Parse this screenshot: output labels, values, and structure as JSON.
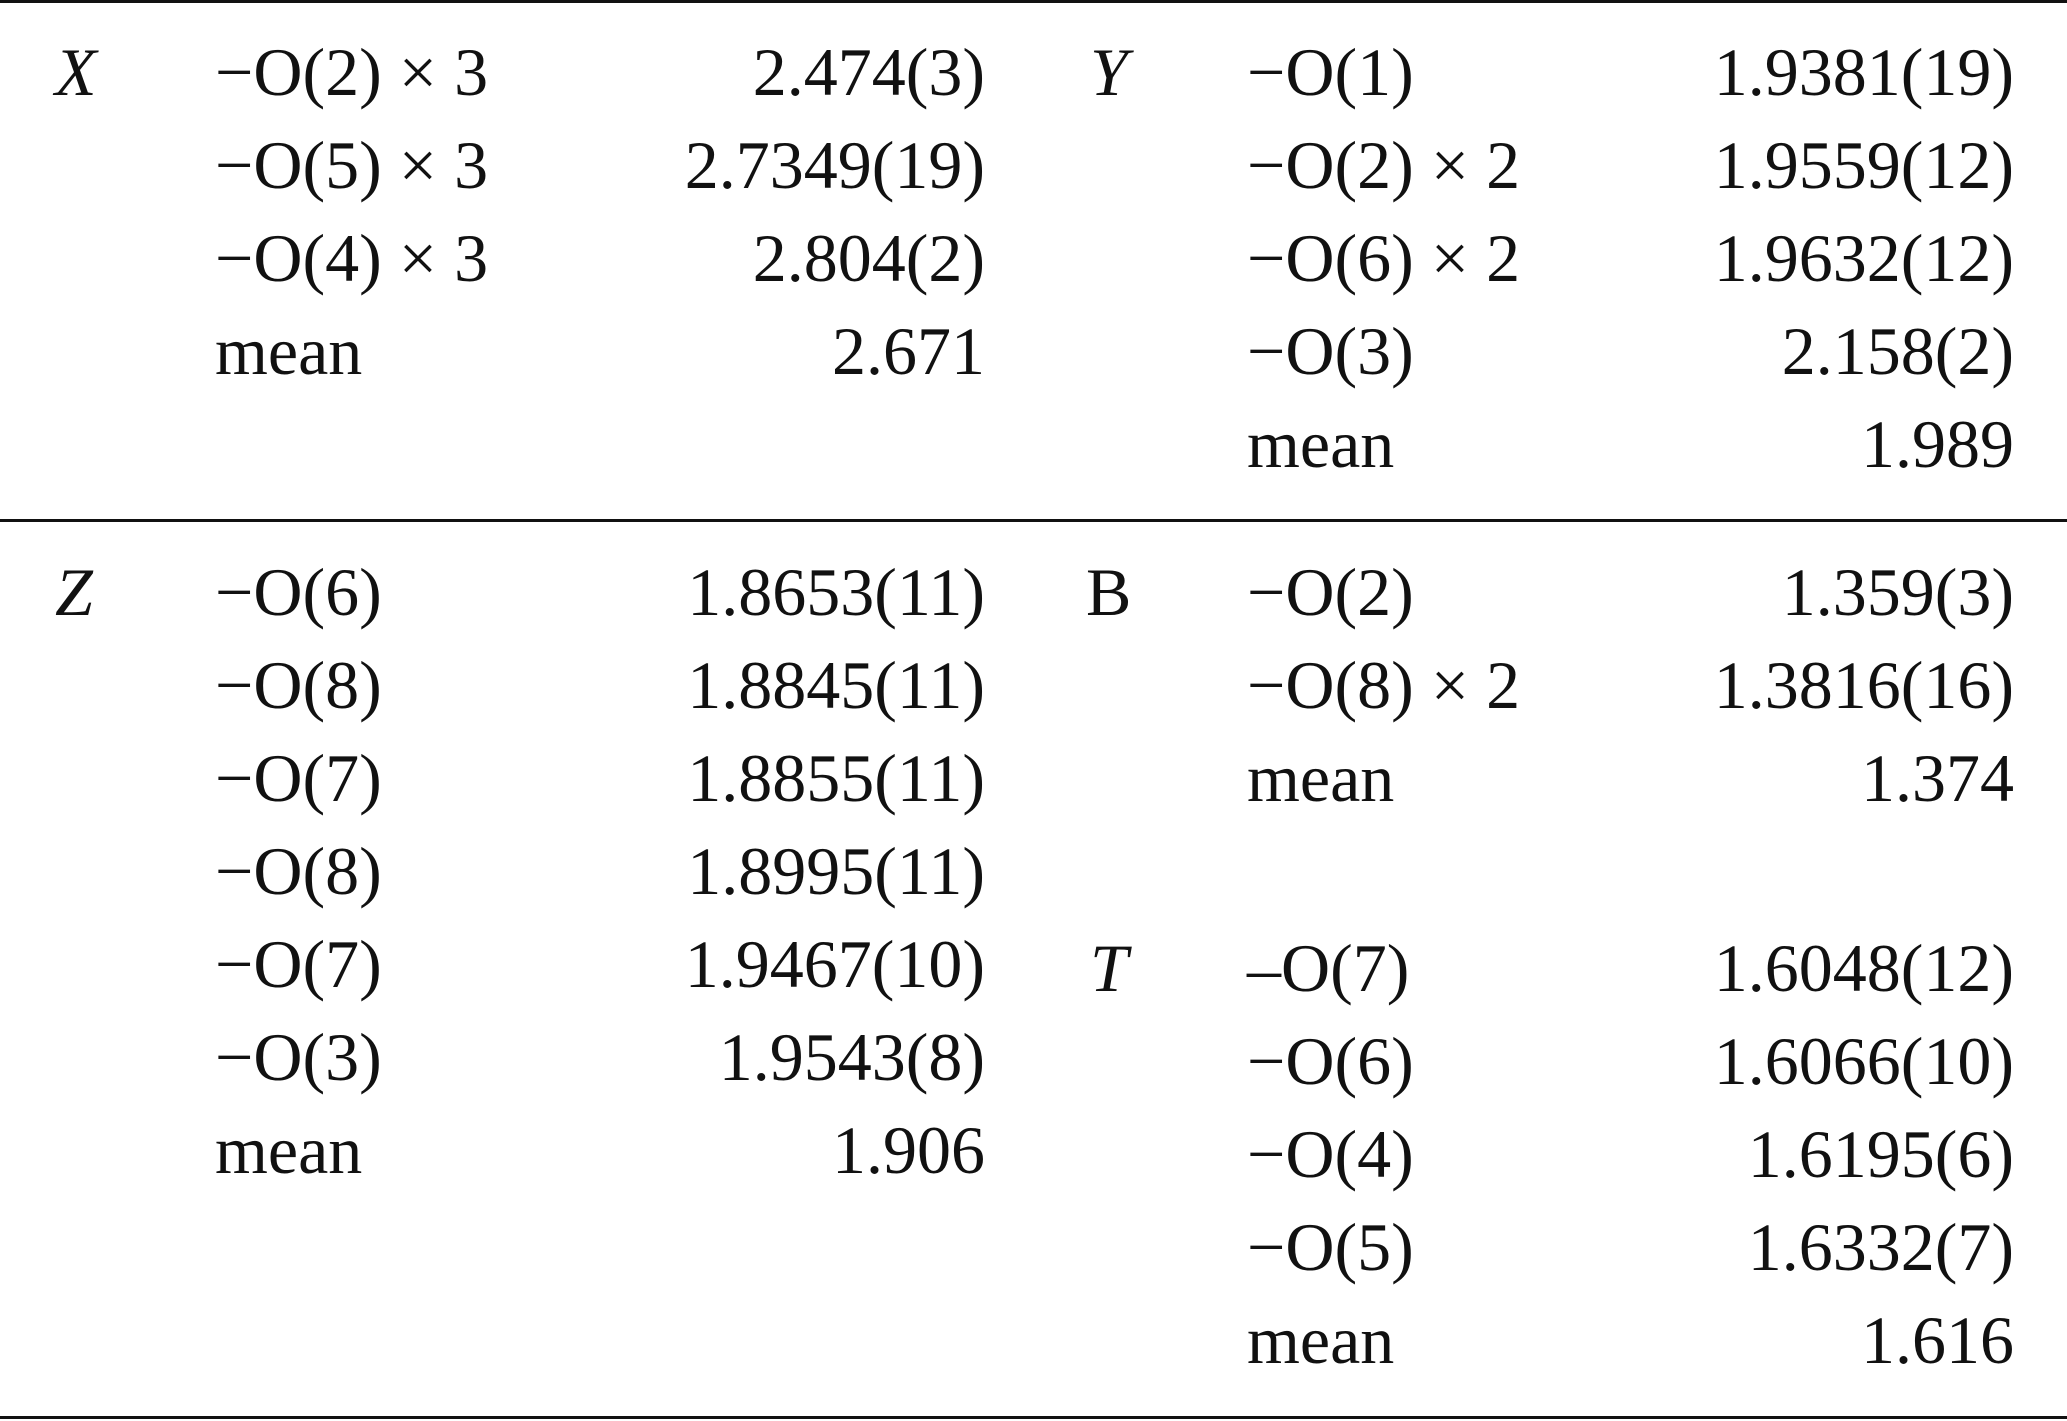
{
  "table": {
    "upper": {
      "left": {
        "site": "X",
        "rows": [
          {
            "bond": "−O(2) × 3",
            "distance": "2.474(3)"
          },
          {
            "bond": "−O(5) × 3",
            "distance": "2.7349(19)"
          },
          {
            "bond": "−O(4) × 3",
            "distance": "2.804(2)"
          },
          {
            "bond": "mean",
            "distance": "2.671"
          }
        ]
      },
      "right": {
        "site": "Y",
        "rows": [
          {
            "bond": "−O(1)",
            "distance": "1.9381(19)"
          },
          {
            "bond": "−O(2) × 2",
            "distance": "1.9559(12)"
          },
          {
            "bond": "−O(6) × 2",
            "distance": "1.9632(12)"
          },
          {
            "bond": "−O(3)",
            "distance": "2.158(2)"
          },
          {
            "bond": "mean",
            "distance": "1.989"
          }
        ]
      }
    },
    "lower": {
      "left": {
        "site": "Z",
        "rows": [
          {
            "bond": "−O(6)",
            "distance": "1.8653(11)"
          },
          {
            "bond": "−O(8)",
            "distance": "1.8845(11)"
          },
          {
            "bond": "−O(7)",
            "distance": "1.8855(11)"
          },
          {
            "bond": "−O(8)",
            "distance": "1.8995(11)"
          },
          {
            "bond": "−O(7)",
            "distance": "1.9467(10)"
          },
          {
            "bond": "−O(3)",
            "distance": "1.9543(8)"
          },
          {
            "bond": "mean",
            "distance": "1.906"
          }
        ]
      },
      "right_b": {
        "site": "B",
        "rows": [
          {
            "bond": "−O(2)",
            "distance": "1.359(3)"
          },
          {
            "bond": "−O(8) × 2",
            "distance": "1.3816(16)"
          },
          {
            "bond": "mean",
            "distance": "1.374"
          }
        ]
      },
      "right_t": {
        "site": "T",
        "rows": [
          {
            "bond": "–O(7)",
            "distance": "1.6048(12)"
          },
          {
            "bond": "−O(6)",
            "distance": "1.6066(10)"
          },
          {
            "bond": "−O(4)",
            "distance": "1.6195(6)"
          },
          {
            "bond": "−O(5)",
            "distance": "1.6332(7)"
          },
          {
            "bond": "mean",
            "distance": "1.616"
          }
        ]
      }
    }
  }
}
